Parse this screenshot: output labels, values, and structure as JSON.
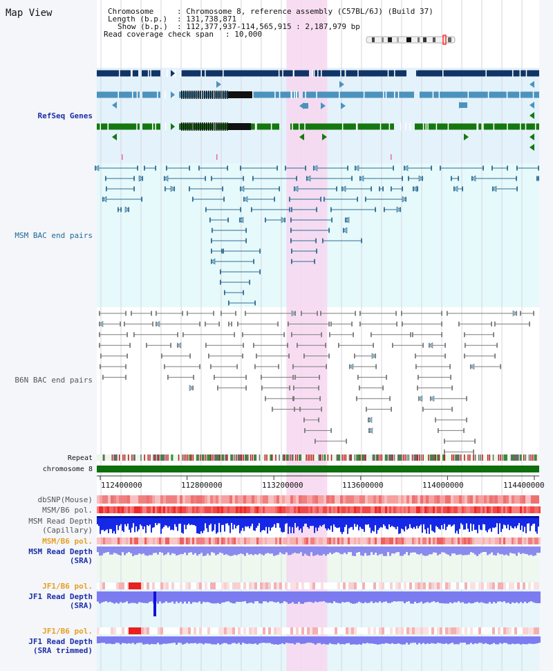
{
  "view_title": "Map View",
  "info": {
    "chromosome_label": "Chromosome",
    "chromosome_value": ": Chromosome 8, reference assembly (C57BL/6J) (Build 37)",
    "length_label": "Length (b.p.)",
    "length_value": ": 131,738,871",
    "show_label": "Show (b.p.)",
    "show_value": ": 112,377,937-114,565,915 : 2,187,979 bp",
    "span_label": "Read coverage check span",
    "span_value": ": 10,000"
  },
  "tracks": {
    "refseq": "RefSeq Genes",
    "msm_bac": "MSM BAC end pairs",
    "b6n_bac": "B6N BAC end pairs",
    "repeat": "Repeat",
    "chromosome": "chromosome 8",
    "dbsnp": "dbSNP(Mouse)",
    "msm_b6_pol_1": "MSM/B6 pol.",
    "msm_depth_cap_1": "MSM Read Depth",
    "msm_depth_cap_2": "(Capillary)",
    "msm_b6_pol_2": "MSM/B6 pol.",
    "msm_depth_sra_1": "MSM Read Depth",
    "msm_depth_sra_2": "(SRA)",
    "jf1_b6_pol_1": "JF1/B6 pol.",
    "jf1_depth_sra_1": "JF1 Read Depth",
    "jf1_depth_sra_2": "(SRA)",
    "jf1_b6_pol_2": "JF1/B6 pol.",
    "jf1_depth_trim_1": "JF1 Read Depth",
    "jf1_depth_trim_2": "(SRA trimmed)"
  },
  "axis": {
    "ticks": [
      112400000,
      112800000,
      113200000,
      113600000,
      114000000,
      114400000
    ],
    "tick_labels": [
      "112400000",
      "112800000",
      "113200000",
      "113600000",
      "114000000",
      "114400000"
    ],
    "range": [
      112377937,
      114565915
    ]
  },
  "highlight": {
    "start": 113258000,
    "end": 113446000
  },
  "colors": {
    "refseq_bg": "#e4f2fb",
    "bac_bg": "#e6f9fb",
    "dark_gene": "#103465",
    "mid_gene": "#4b93bd",
    "green_gene": "#15770f",
    "msm_line": "#2d6b90",
    "b6n_line": "#7a7a7a",
    "highlight": "#f7d7f0",
    "chrom_bar": "#0c6e0c",
    "label_blue": "#1c2fa6",
    "label_orange": "#e6a020",
    "label_msm": "#1a6a98",
    "label_gray": "#555555",
    "depth_blue": "#1020e8",
    "depth_light": "#8a8aee",
    "snp_pink": "#f29a9a",
    "pol_red": "#ee3030"
  }
}
